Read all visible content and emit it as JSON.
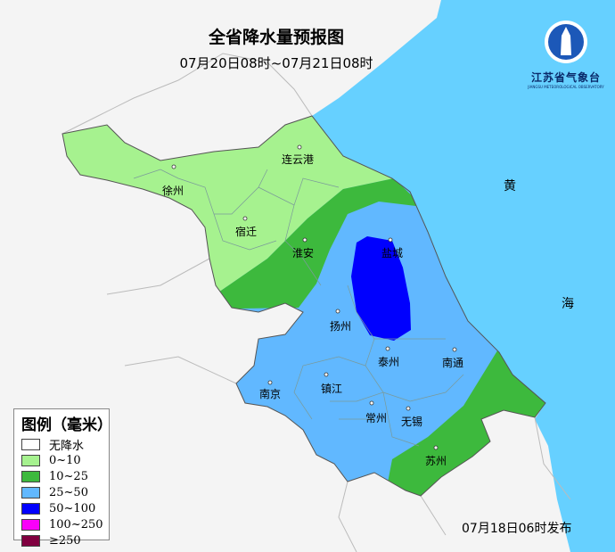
{
  "title": "全省降水量预报图",
  "period": "07月20日08时~07月21日08时",
  "issued": "07月18日06时发布",
  "logo": {
    "name": "江苏省气象台",
    "en": "JIANGSU METEOROLOGICAL OBSERVATORY"
  },
  "sea_labels": [
    "黄",
    "海"
  ],
  "cities": [
    "连云港",
    "徐州",
    "宿迁",
    "淮安",
    "盐城",
    "扬州",
    "泰州",
    "南通",
    "南京",
    "镇江",
    "常州",
    "无锡",
    "苏州"
  ],
  "legend": {
    "title": "图例（毫米）",
    "items": [
      {
        "label": "无降水",
        "color": "#ffffff"
      },
      {
        "label": "0~10",
        "color": "#a6f28f"
      },
      {
        "label": "10~25",
        "color": "#3db93d"
      },
      {
        "label": "25~50",
        "color": "#61b8ff"
      },
      {
        "label": "50~100",
        "color": "#0000fe"
      },
      {
        "label": "100~250",
        "color": "#fa00fa"
      },
      {
        "label": "≥250",
        "color": "#800040"
      }
    ]
  },
  "colors": {
    "sea": "#66d0ff",
    "land_outside": "#f4f4f4"
  }
}
